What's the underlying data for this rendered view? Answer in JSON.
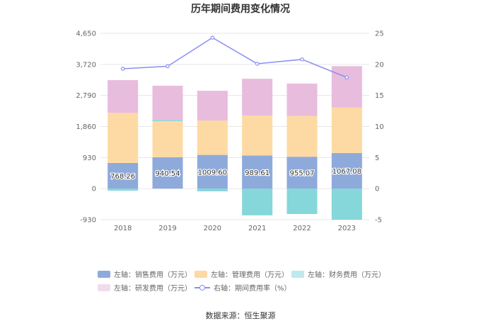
{
  "chart_data": {
    "type": "bar",
    "title": "历年期间费用变化情况",
    "categories": [
      "2018",
      "2019",
      "2020",
      "2021",
      "2022",
      "2023"
    ],
    "left_axis": {
      "ticks": [
        "4,650",
        "3,720",
        "2,790",
        "1,860",
        "930",
        "0",
        "-930"
      ],
      "min": -930,
      "max": 4650
    },
    "right_axis": {
      "ticks": [
        "25",
        "20",
        "15",
        "10",
        "5",
        "0",
        "-5"
      ],
      "min": -5,
      "max": 25
    },
    "series": [
      {
        "name": "左轴：销售费用（万元）",
        "type": "bar",
        "axis": "left",
        "color": "#8eaadb",
        "values": [
          768.26,
          940.54,
          1009.6,
          989.61,
          955.07,
          1067.08
        ],
        "labels": [
          "768.26",
          "940.54",
          "1009.60",
          "989.61",
          "955.07",
          "1067.08"
        ]
      },
      {
        "name": "左轴：管理费用（万元）",
        "type": "bar",
        "axis": "left",
        "color": "#fddaa3",
        "values": [
          1500,
          1080,
          1030,
          1200,
          1220,
          1360
        ]
      },
      {
        "name": "左轴：财务费用（万元）",
        "type": "bar",
        "axis": "left",
        "color": "#85d7d9",
        "values": [
          -60,
          30,
          -80,
          -800,
          -760,
          -930
        ]
      },
      {
        "name": "左轴：研发费用（万元）",
        "type": "bar",
        "axis": "left",
        "color": "#e8bcdc",
        "values": [
          980,
          1030,
          890,
          1100,
          970,
          1240
        ]
      },
      {
        "name": "右轴：期间费用率（%）",
        "type": "line",
        "axis": "right",
        "color": "#8a8ff0",
        "values": [
          19.3,
          19.7,
          24.3,
          20.1,
          20.8,
          17.9
        ]
      }
    ]
  },
  "source": "数据来源：恒生聚源"
}
